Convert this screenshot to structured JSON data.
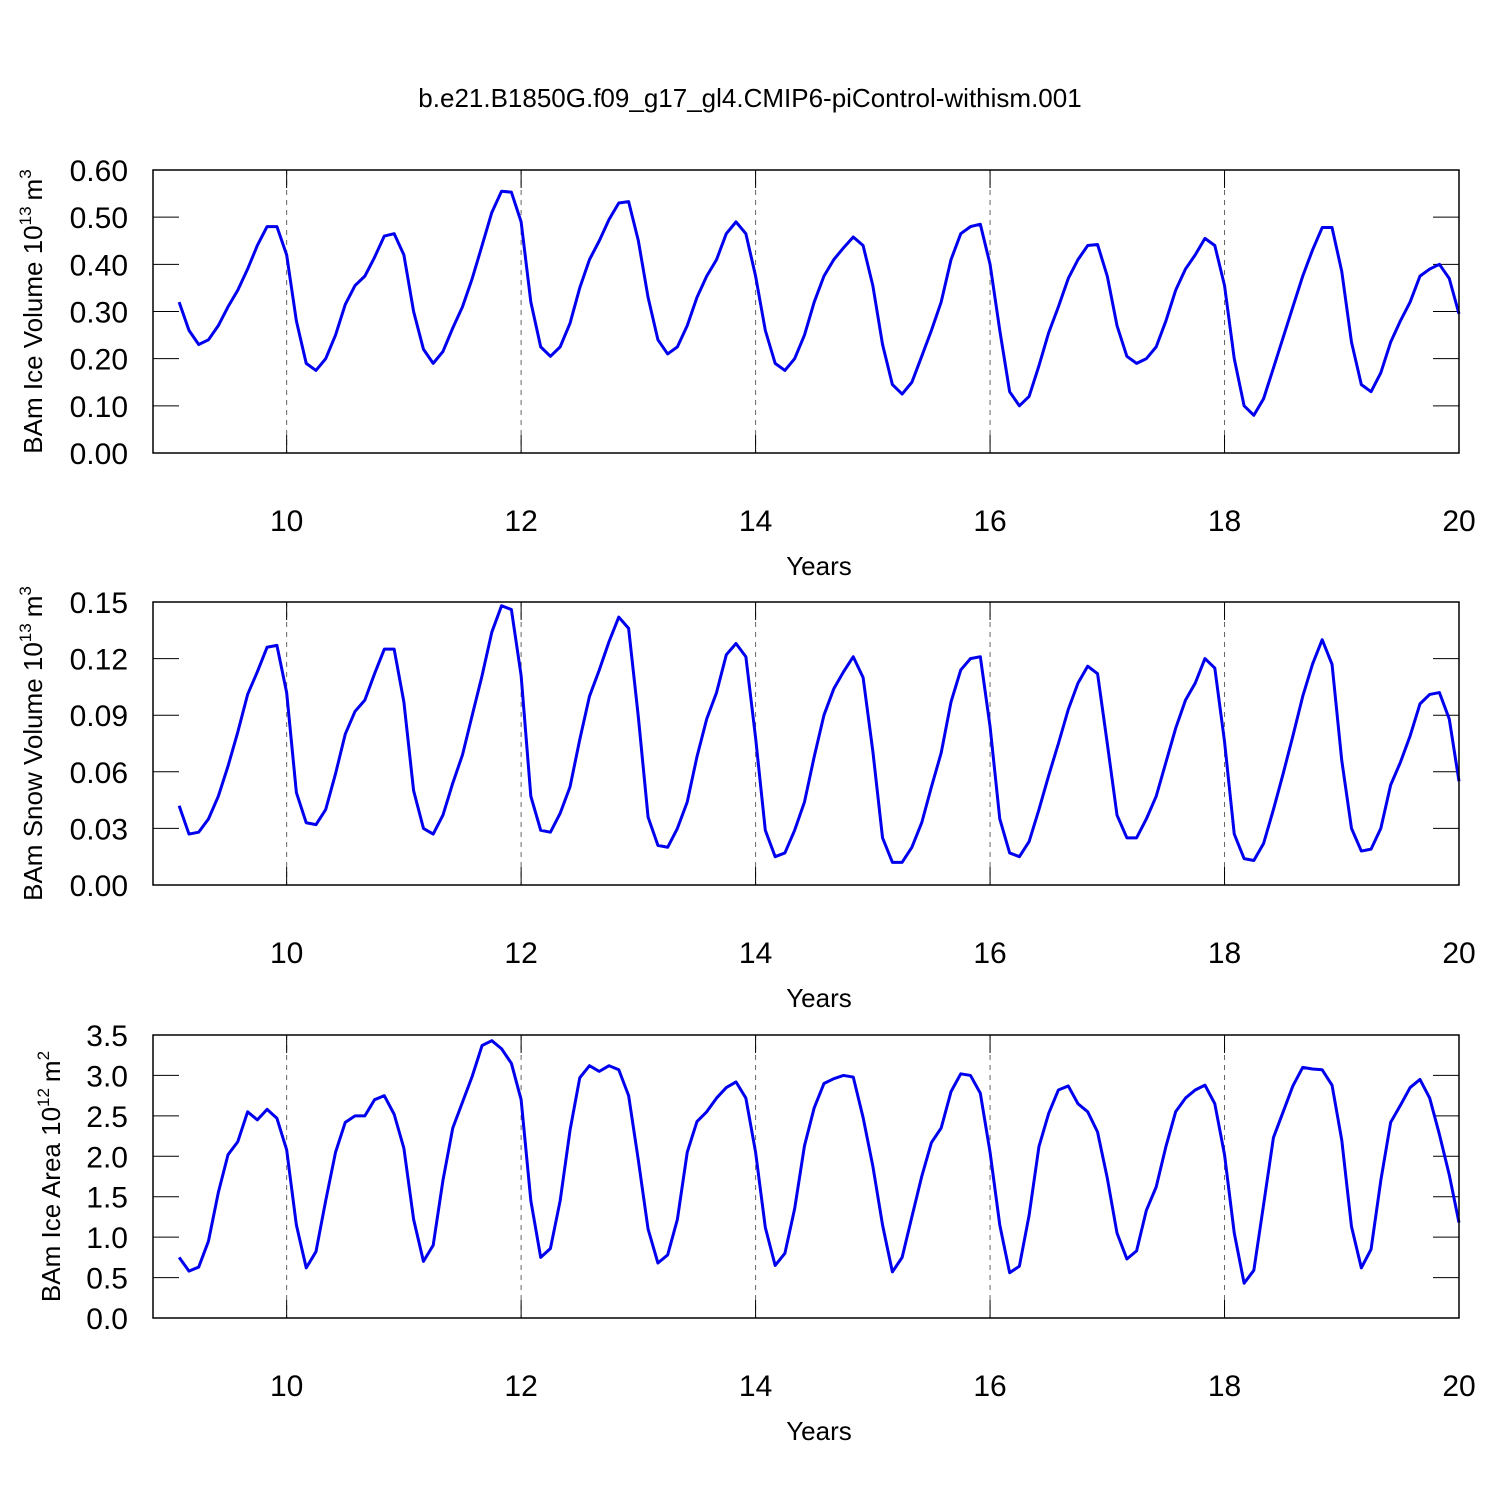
{
  "title": "b.e21.B1850G.f09_g17_gl4.CMIP6-piControl-withism.001",
  "chart_data": [
    {
      "type": "line",
      "ylabel": "BAm Ice Volume 10",
      "ylabel_sup": [
        "13",
        "3"
      ],
      "ylabel_unit": "m",
      "xlabel": "Years",
      "xlim": [
        8.86,
        20
      ],
      "xticks": [
        10,
        12,
        14,
        16,
        18,
        20
      ],
      "ylim": [
        0,
        0.6
      ],
      "yticks": [
        {
          "value": 0,
          "label": "0.00"
        },
        {
          "value": 0.1,
          "label": "0.10"
        },
        {
          "value": 0.2,
          "label": "0.20"
        },
        {
          "value": 0.3,
          "label": "0.30"
        },
        {
          "value": 0.4,
          "label": "0.40"
        },
        {
          "value": 0.5,
          "label": "0.50"
        },
        {
          "value": 0.6,
          "label": "0.60"
        }
      ],
      "grid": true,
      "x": [
        9.083,
        9.167,
        9.25,
        9.333,
        9.417,
        9.5,
        9.583,
        9.667,
        9.75,
        9.833,
        9.917,
        10,
        10.083,
        10.167,
        10.25,
        10.333,
        10.417,
        10.5,
        10.583,
        10.667,
        10.75,
        10.833,
        10.917,
        11,
        11.083,
        11.167,
        11.25,
        11.333,
        11.417,
        11.5,
        11.583,
        11.667,
        11.75,
        11.833,
        11.917,
        12,
        12.083,
        12.167,
        12.25,
        12.333,
        12.417,
        12.5,
        12.583,
        12.667,
        12.75,
        12.833,
        12.917,
        13,
        13.083,
        13.167,
        13.25,
        13.333,
        13.417,
        13.5,
        13.583,
        13.667,
        13.75,
        13.833,
        13.917,
        14,
        14.083,
        14.167,
        14.25,
        14.333,
        14.417,
        14.5,
        14.583,
        14.667,
        14.75,
        14.833,
        14.917,
        15,
        15.083,
        15.167,
        15.25,
        15.333,
        15.417,
        15.5,
        15.583,
        15.667,
        15.75,
        15.833,
        15.917,
        16,
        16.083,
        16.167,
        16.25,
        16.333,
        16.417,
        16.5,
        16.583,
        16.667,
        16.75,
        16.833,
        16.917,
        17,
        17.083,
        17.167,
        17.25,
        17.333,
        17.417,
        17.5,
        17.583,
        17.667,
        17.75,
        17.833,
        17.917,
        18,
        18.083,
        18.167,
        18.25,
        18.333,
        18.417,
        18.5,
        18.583,
        18.667,
        18.75,
        18.833,
        18.917,
        19,
        19.083,
        19.167,
        19.25,
        19.333,
        19.417,
        19.5,
        19.583,
        19.667,
        19.75,
        19.833,
        19.917,
        20
      ],
      "series": [
        {
          "color": "#0000ee",
          "values": [
            0.32,
            0.26,
            0.23,
            0.24,
            0.27,
            0.31,
            0.345,
            0.39,
            0.44,
            0.48,
            0.48,
            0.42,
            0.28,
            0.19,
            0.175,
            0.2,
            0.25,
            0.315,
            0.355,
            0.375,
            0.415,
            0.46,
            0.465,
            0.42,
            0.3,
            0.22,
            0.19,
            0.215,
            0.265,
            0.31,
            0.37,
            0.44,
            0.51,
            0.555,
            0.553,
            0.49,
            0.32,
            0.225,
            0.205,
            0.225,
            0.275,
            0.35,
            0.41,
            0.45,
            0.495,
            0.53,
            0.533,
            0.45,
            0.33,
            0.24,
            0.21,
            0.225,
            0.27,
            0.33,
            0.375,
            0.41,
            0.465,
            0.49,
            0.465,
            0.375,
            0.26,
            0.19,
            0.175,
            0.2,
            0.25,
            0.32,
            0.375,
            0.41,
            0.435,
            0.458,
            0.44,
            0.355,
            0.23,
            0.145,
            0.125,
            0.15,
            0.205,
            0.26,
            0.32,
            0.41,
            0.465,
            0.48,
            0.485,
            0.4,
            0.26,
            0.13,
            0.1,
            0.12,
            0.185,
            0.255,
            0.31,
            0.37,
            0.41,
            0.44,
            0.442,
            0.375,
            0.27,
            0.205,
            0.19,
            0.2,
            0.225,
            0.28,
            0.345,
            0.39,
            0.42,
            0.455,
            0.44,
            0.355,
            0.2,
            0.1,
            0.08,
            0.115,
            0.18,
            0.245,
            0.31,
            0.375,
            0.43,
            0.478,
            0.478,
            0.385,
            0.235,
            0.145,
            0.13,
            0.17,
            0.235,
            0.28,
            0.32,
            0.375,
            0.39,
            0.4,
            0.37,
            0.295
          ]
        }
      ]
    },
    {
      "type": "line",
      "ylabel": "BAm Snow Volume 10",
      "ylabel_sup": [
        "13",
        "3"
      ],
      "ylabel_unit": "m",
      "xlabel": "Years",
      "xlim": [
        8.86,
        20
      ],
      "xticks": [
        10,
        12,
        14,
        16,
        18,
        20
      ],
      "ylim": [
        0,
        0.15
      ],
      "yticks": [
        {
          "value": 0,
          "label": "0.00"
        },
        {
          "value": 0.03,
          "label": "0.03"
        },
        {
          "value": 0.06,
          "label": "0.06"
        },
        {
          "value": 0.09,
          "label": "0.09"
        },
        {
          "value": 0.12,
          "label": "0.12"
        },
        {
          "value": 0.15,
          "label": "0.15"
        }
      ],
      "grid": true,
      "x": [
        9.083,
        9.167,
        9.25,
        9.333,
        9.417,
        9.5,
        9.583,
        9.667,
        9.75,
        9.833,
        9.917,
        10,
        10.083,
        10.167,
        10.25,
        10.333,
        10.417,
        10.5,
        10.583,
        10.667,
        10.75,
        10.833,
        10.917,
        11,
        11.083,
        11.167,
        11.25,
        11.333,
        11.417,
        11.5,
        11.583,
        11.667,
        11.75,
        11.833,
        11.917,
        12,
        12.083,
        12.167,
        12.25,
        12.333,
        12.417,
        12.5,
        12.583,
        12.667,
        12.75,
        12.833,
        12.917,
        13,
        13.083,
        13.167,
        13.25,
        13.333,
        13.417,
        13.5,
        13.583,
        13.667,
        13.75,
        13.833,
        13.917,
        14,
        14.083,
        14.167,
        14.25,
        14.333,
        14.417,
        14.5,
        14.583,
        14.667,
        14.75,
        14.833,
        14.917,
        15,
        15.083,
        15.167,
        15.25,
        15.333,
        15.417,
        15.5,
        15.583,
        15.667,
        15.75,
        15.833,
        15.917,
        16,
        16.083,
        16.167,
        16.25,
        16.333,
        16.417,
        16.5,
        16.583,
        16.667,
        16.75,
        16.833,
        16.917,
        17,
        17.083,
        17.167,
        17.25,
        17.333,
        17.417,
        17.5,
        17.583,
        17.667,
        17.75,
        17.833,
        17.917,
        18,
        18.083,
        18.167,
        18.25,
        18.333,
        18.417,
        18.5,
        18.583,
        18.667,
        18.75,
        18.833,
        18.917,
        19,
        19.083,
        19.167,
        19.25,
        19.333,
        19.417,
        19.5,
        19.583,
        19.667,
        19.75,
        19.833,
        19.917,
        20
      ],
      "series": [
        {
          "color": "#0000ee",
          "values": [
            0.042,
            0.027,
            0.028,
            0.035,
            0.047,
            0.063,
            0.081,
            0.101,
            0.113,
            0.126,
            0.127,
            0.102,
            0.049,
            0.033,
            0.032,
            0.04,
            0.059,
            0.08,
            0.092,
            0.098,
            0.112,
            0.125,
            0.125,
            0.097,
            0.05,
            0.03,
            0.027,
            0.037,
            0.054,
            0.069,
            0.09,
            0.111,
            0.134,
            0.148,
            0.146,
            0.111,
            0.047,
            0.029,
            0.028,
            0.038,
            0.052,
            0.077,
            0.1,
            0.114,
            0.129,
            0.142,
            0.136,
            0.089,
            0.036,
            0.021,
            0.02,
            0.03,
            0.044,
            0.068,
            0.088,
            0.102,
            0.122,
            0.128,
            0.121,
            0.078,
            0.029,
            0.015,
            0.017,
            0.029,
            0.044,
            0.068,
            0.09,
            0.104,
            0.113,
            0.121,
            0.11,
            0.071,
            0.025,
            0.012,
            0.012,
            0.02,
            0.033,
            0.052,
            0.07,
            0.097,
            0.114,
            0.12,
            0.121,
            0.084,
            0.035,
            0.017,
            0.015,
            0.023,
            0.04,
            0.058,
            0.075,
            0.093,
            0.107,
            0.116,
            0.112,
            0.075,
            0.037,
            0.025,
            0.025,
            0.035,
            0.047,
            0.065,
            0.083,
            0.098,
            0.107,
            0.12,
            0.115,
            0.076,
            0.027,
            0.014,
            0.013,
            0.022,
            0.04,
            0.059,
            0.079,
            0.1,
            0.117,
            0.13,
            0.117,
            0.066,
            0.03,
            0.018,
            0.019,
            0.03,
            0.053,
            0.065,
            0.079,
            0.096,
            0.101,
            0.102,
            0.088,
            0.055
          ]
        }
      ]
    },
    {
      "type": "line",
      "ylabel": "BAm Ice Area 10",
      "ylabel_sup": [
        "12",
        "2"
      ],
      "ylabel_unit": "m",
      "xlabel": "Years",
      "xlim": [
        8.86,
        20
      ],
      "xticks": [
        10,
        12,
        14,
        16,
        18,
        20
      ],
      "ylim": [
        0,
        3.5
      ],
      "yticks": [
        {
          "value": 0,
          "label": "0.0"
        },
        0.5,
        {
          "value": 1,
          "label": "1.0"
        },
        1.5,
        {
          "value": 2,
          "label": "2.0"
        },
        2.5,
        {
          "value": 3,
          "label": "3.0"
        },
        3.5
      ],
      "grid": true,
      "x": [
        9.083,
        9.167,
        9.25,
        9.333,
        9.417,
        9.5,
        9.583,
        9.667,
        9.75,
        9.833,
        9.917,
        10,
        10.083,
        10.167,
        10.25,
        10.333,
        10.417,
        10.5,
        10.583,
        10.667,
        10.75,
        10.833,
        10.917,
        11,
        11.083,
        11.167,
        11.25,
        11.333,
        11.417,
        11.5,
        11.583,
        11.667,
        11.75,
        11.833,
        11.917,
        12,
        12.083,
        12.167,
        12.25,
        12.333,
        12.417,
        12.5,
        12.583,
        12.667,
        12.75,
        12.833,
        12.917,
        13,
        13.083,
        13.167,
        13.25,
        13.333,
        13.417,
        13.5,
        13.583,
        13.667,
        13.75,
        13.833,
        13.917,
        14,
        14.083,
        14.167,
        14.25,
        14.333,
        14.417,
        14.5,
        14.583,
        14.667,
        14.75,
        14.833,
        14.917,
        15,
        15.083,
        15.167,
        15.25,
        15.333,
        15.417,
        15.5,
        15.583,
        15.667,
        15.75,
        15.833,
        15.917,
        16,
        16.083,
        16.167,
        16.25,
        16.333,
        16.417,
        16.5,
        16.583,
        16.667,
        16.75,
        16.833,
        16.917,
        17,
        17.083,
        17.167,
        17.25,
        17.333,
        17.417,
        17.5,
        17.583,
        17.667,
        17.75,
        17.833,
        17.917,
        18,
        18.083,
        18.167,
        18.25,
        18.333,
        18.417,
        18.5,
        18.583,
        18.667,
        18.75,
        18.833,
        18.917,
        19,
        19.083,
        19.167,
        19.25,
        19.333,
        19.417,
        19.5,
        19.583,
        19.667,
        19.75,
        19.833,
        19.917,
        20
      ],
      "series": [
        {
          "color": "#0000ee",
          "values": [
            0.75,
            0.58,
            0.63,
            0.95,
            1.55,
            2.02,
            2.18,
            2.55,
            2.45,
            2.58,
            2.47,
            2.08,
            1.15,
            0.62,
            0.82,
            1.45,
            2.05,
            2.42,
            2.5,
            2.5,
            2.7,
            2.75,
            2.52,
            2.1,
            1.22,
            0.7,
            0.9,
            1.7,
            2.35,
            2.67,
            2.99,
            3.37,
            3.43,
            3.33,
            3.15,
            2.7,
            1.45,
            0.75,
            0.86,
            1.45,
            2.32,
            2.97,
            3.12,
            3.05,
            3.12,
            3.07,
            2.75,
            1.95,
            1.1,
            0.68,
            0.78,
            1.22,
            2.05,
            2.43,
            2.55,
            2.72,
            2.85,
            2.92,
            2.72,
            2.05,
            1.12,
            0.65,
            0.8,
            1.35,
            2.13,
            2.6,
            2.9,
            2.96,
            3,
            2.98,
            2.48,
            1.88,
            1.15,
            0.57,
            0.75,
            1.25,
            1.75,
            2.17,
            2.35,
            2.8,
            3.02,
            3,
            2.78,
            2.05,
            1.15,
            0.56,
            0.64,
            1.27,
            2.12,
            2.53,
            2.82,
            2.87,
            2.65,
            2.55,
            2.3,
            1.73,
            1.05,
            0.73,
            0.83,
            1.33,
            1.62,
            2.12,
            2.55,
            2.72,
            2.82,
            2.88,
            2.65,
            2.02,
            1.05,
            0.43,
            0.59,
            1.4,
            2.23,
            2.55,
            2.87,
            3.1,
            3.08,
            3.07,
            2.88,
            2.2,
            1.13,
            0.62,
            0.85,
            1.7,
            2.42,
            2.63,
            2.85,
            2.95,
            2.72,
            2.27,
            1.77,
            1.18
          ]
        }
      ]
    }
  ]
}
